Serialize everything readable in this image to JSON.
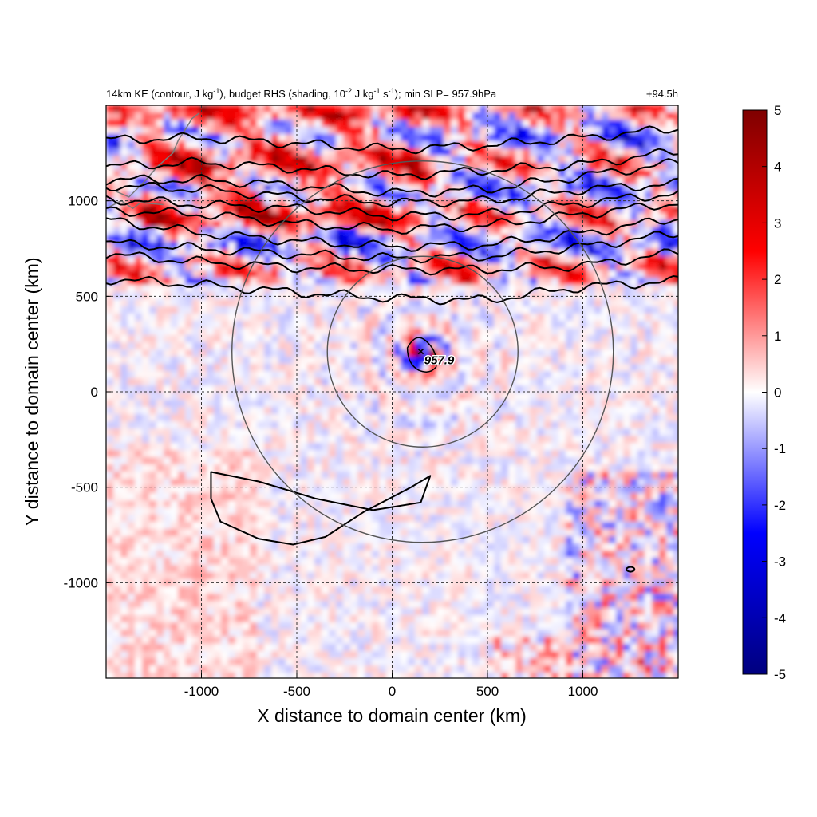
{
  "chart_data": {
    "type": "heatmap",
    "title_left_parts": [
      "14km KE (contour, J kg",
      "-1",
      "), budget RHS (shading, 10",
      "-2",
      " J kg",
      "-1",
      " s",
      "-1",
      "); min SLP= 957.9hPa"
    ],
    "title_right": "+94.5h",
    "xlabel": "X distance to domain center (km)",
    "ylabel": "Y distance to domain center (km)",
    "xlim": [
      -1500,
      1500
    ],
    "ylim": [
      -1500,
      1500
    ],
    "xticks": [
      -1000,
      -500,
      0,
      500,
      1000
    ],
    "xtick_labels": [
      "-1000",
      "-500",
      "0",
      "500",
      "1000"
    ],
    "yticks": [
      -1000,
      -500,
      0,
      500,
      1000
    ],
    "ytick_labels": [
      "-1000",
      "-500",
      "0",
      "500",
      "1000"
    ],
    "grid": true,
    "colorbar": {
      "range": [
        -5,
        5
      ],
      "ticks": [
        5,
        4,
        3,
        2,
        1,
        0,
        -1,
        -2,
        -3,
        -4,
        -5
      ],
      "tick_labels": [
        "5",
        "4",
        "3",
        "2",
        "1",
        "0",
        "-1",
        "-2",
        "-3",
        "-4",
        "-5"
      ],
      "colors": [
        "#00007f",
        "#0000ff",
        "#ffffff",
        "#ff0000",
        "#7f0000"
      ]
    },
    "storm_center": {
      "x": 160,
      "y": 210,
      "min_slp_label": "957.9"
    },
    "range_rings": [
      {
        "center_x": 160,
        "center_y": 210,
        "radius": 500
      },
      {
        "center_x": 160,
        "center_y": 210,
        "radius": 1000
      }
    ],
    "ke_contours_upper_y_at_x": {
      "x": [
        -1500,
        -1000,
        -500,
        0,
        500,
        1000,
        1500
      ],
      "lines": [
        [
          590,
          560,
          520,
          490,
          480,
          550,
          580
        ],
        [
          720,
          680,
          650,
          640,
          640,
          660,
          730
        ],
        [
          780,
          750,
          720,
          700,
          710,
          760,
          830
        ],
        [
          900,
          830,
          790,
          760,
          770,
          830,
          910
        ],
        [
          950,
          930,
          880,
          850,
          870,
          930,
          990
        ],
        [
          1010,
          980,
          960,
          920,
          930,
          990,
          1040
        ],
        [
          1080,
          1060,
          1020,
          990,
          1000,
          1060,
          1090
        ],
        [
          1110,
          1110,
          1080,
          1040,
          1060,
          1130,
          1200
        ],
        [
          1180,
          1200,
          1170,
          1130,
          1160,
          1190,
          1260
        ],
        [
          1320,
          1330,
          1300,
          1270,
          1290,
          1330,
          1380
        ]
      ]
    },
    "ke_contour_south_loop": [
      [
        -950,
        -420
      ],
      [
        -700,
        -470
      ],
      [
        -400,
        -560
      ],
      [
        -100,
        -620
      ],
      [
        150,
        -580
      ],
      [
        200,
        -440
      ],
      [
        100,
        -500
      ],
      [
        -150,
        -630
      ],
      [
        -350,
        -760
      ],
      [
        -520,
        -800
      ],
      [
        -700,
        -770
      ],
      [
        -900,
        -680
      ],
      [
        -950,
        -560
      ]
    ]
  },
  "colors": {
    "ring": "#555555",
    "contour": "#000000",
    "grid": "#333333",
    "coast": "#7a7a7a"
  }
}
